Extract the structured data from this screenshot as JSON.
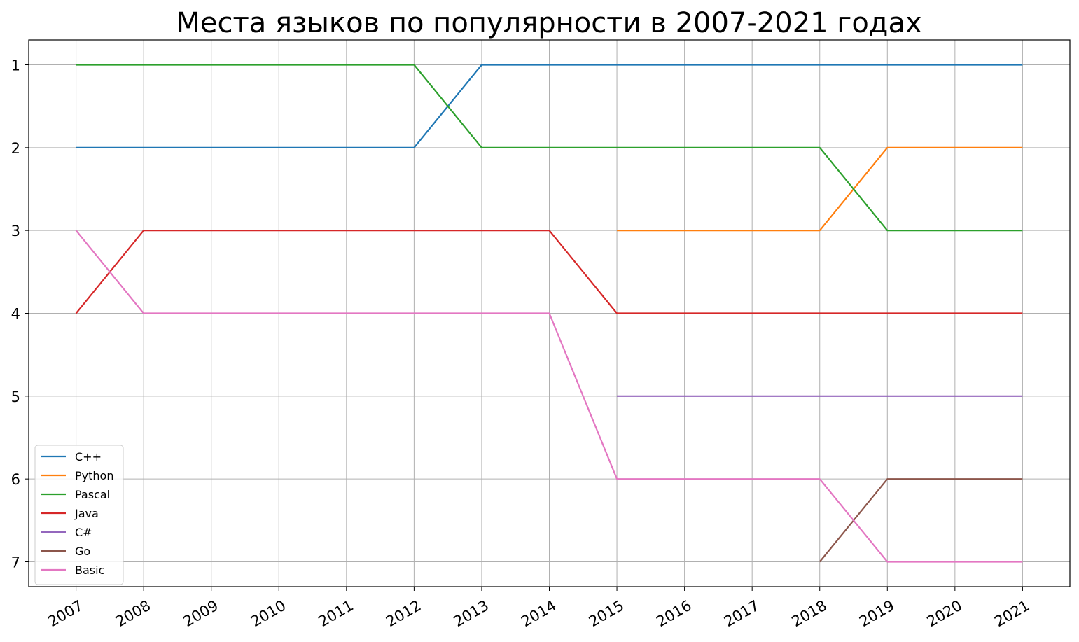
{
  "chart_data": {
    "type": "line",
    "title": "Места языков по популярности в 2007-2021 годах",
    "xlabel": "",
    "ylabel": "",
    "x": [
      2007,
      2008,
      2009,
      2010,
      2011,
      2012,
      2013,
      2014,
      2015,
      2016,
      2017,
      2018,
      2019,
      2020,
      2021
    ],
    "x_tick_labels": [
      "2007",
      "2008",
      "2009",
      "2010",
      "2011",
      "2012",
      "2013",
      "2014",
      "2015",
      "2016",
      "2017",
      "2018",
      "2019",
      "2020",
      "2021"
    ],
    "y_ticks": [
      1,
      2,
      3,
      4,
      5,
      6,
      7
    ],
    "y_tick_labels": [
      "1",
      "2",
      "3",
      "4",
      "5",
      "6",
      "7"
    ],
    "ylim": [
      7.3,
      0.7
    ],
    "y_inverted": true,
    "grid": true,
    "legend_position": "lower-left",
    "series": [
      {
        "name": "C++",
        "color": "#1f77b4",
        "values": [
          2,
          2,
          2,
          2,
          2,
          2,
          1,
          1,
          1,
          1,
          1,
          1,
          1,
          1,
          1
        ]
      },
      {
        "name": "Python",
        "color": "#ff7f0e",
        "values": [
          null,
          null,
          null,
          null,
          null,
          null,
          null,
          null,
          3,
          3,
          3,
          3,
          2,
          2,
          2
        ]
      },
      {
        "name": "Pascal",
        "color": "#2ca02c",
        "values": [
          1,
          1,
          1,
          1,
          1,
          1,
          2,
          2,
          2,
          2,
          2,
          2,
          3,
          3,
          3
        ]
      },
      {
        "name": "Java",
        "color": "#d62728",
        "values": [
          4,
          3,
          3,
          3,
          3,
          3,
          3,
          3,
          4,
          4,
          4,
          4,
          4,
          4,
          4
        ]
      },
      {
        "name": "C#",
        "color": "#9467bd",
        "values": [
          null,
          null,
          null,
          null,
          null,
          null,
          null,
          null,
          5,
          5,
          5,
          5,
          5,
          5,
          5
        ]
      },
      {
        "name": "Go",
        "color": "#8c564b",
        "values": [
          null,
          null,
          null,
          null,
          null,
          null,
          null,
          null,
          null,
          null,
          null,
          7,
          6,
          6,
          6
        ]
      },
      {
        "name": "Basic",
        "color": "#e377c2",
        "values": [
          3,
          4,
          4,
          4,
          4,
          4,
          4,
          4,
          6,
          6,
          6,
          6,
          7,
          7,
          7
        ]
      }
    ]
  }
}
